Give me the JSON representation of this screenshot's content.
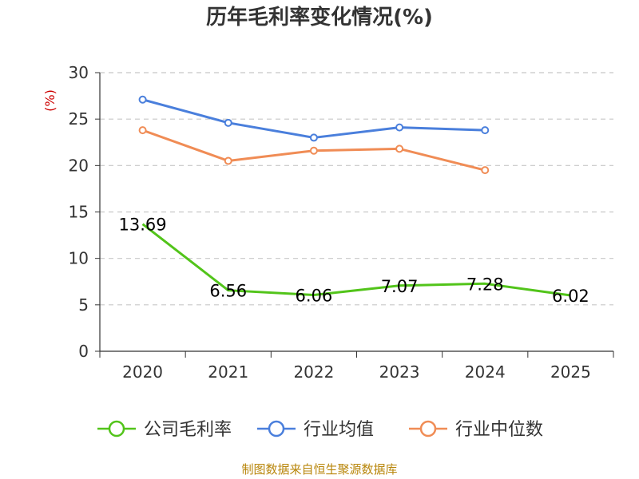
{
  "chart_data": {
    "type": "line",
    "title": "历年毛利率变化情况(%)",
    "ylabel": "(%)",
    "xlabel": "",
    "categories": [
      "2020",
      "2021",
      "2022",
      "2023",
      "2024",
      "2025"
    ],
    "ylim": [
      0,
      30
    ],
    "yticks": [
      0,
      5,
      10,
      15,
      20,
      25,
      30
    ],
    "grid": true,
    "legend_position": "bottom",
    "series": [
      {
        "name": "公司毛利率",
        "color": "#52c41a",
        "values": [
          13.69,
          6.56,
          6.06,
          7.07,
          7.28,
          6.02
        ],
        "labels": [
          "13.69",
          "6.56",
          "6.06",
          "7.07",
          "7.28",
          "6.02"
        ]
      },
      {
        "name": "行业均值",
        "color": "#4a7fdc",
        "values": [
          27.1,
          24.6,
          23.0,
          24.1,
          23.8,
          null
        ]
      },
      {
        "name": "行业中位数",
        "color": "#f08c55",
        "values": [
          23.8,
          20.5,
          21.6,
          21.8,
          19.5,
          null
        ]
      }
    ],
    "source": "制图数据来自恒生聚源数据库"
  }
}
